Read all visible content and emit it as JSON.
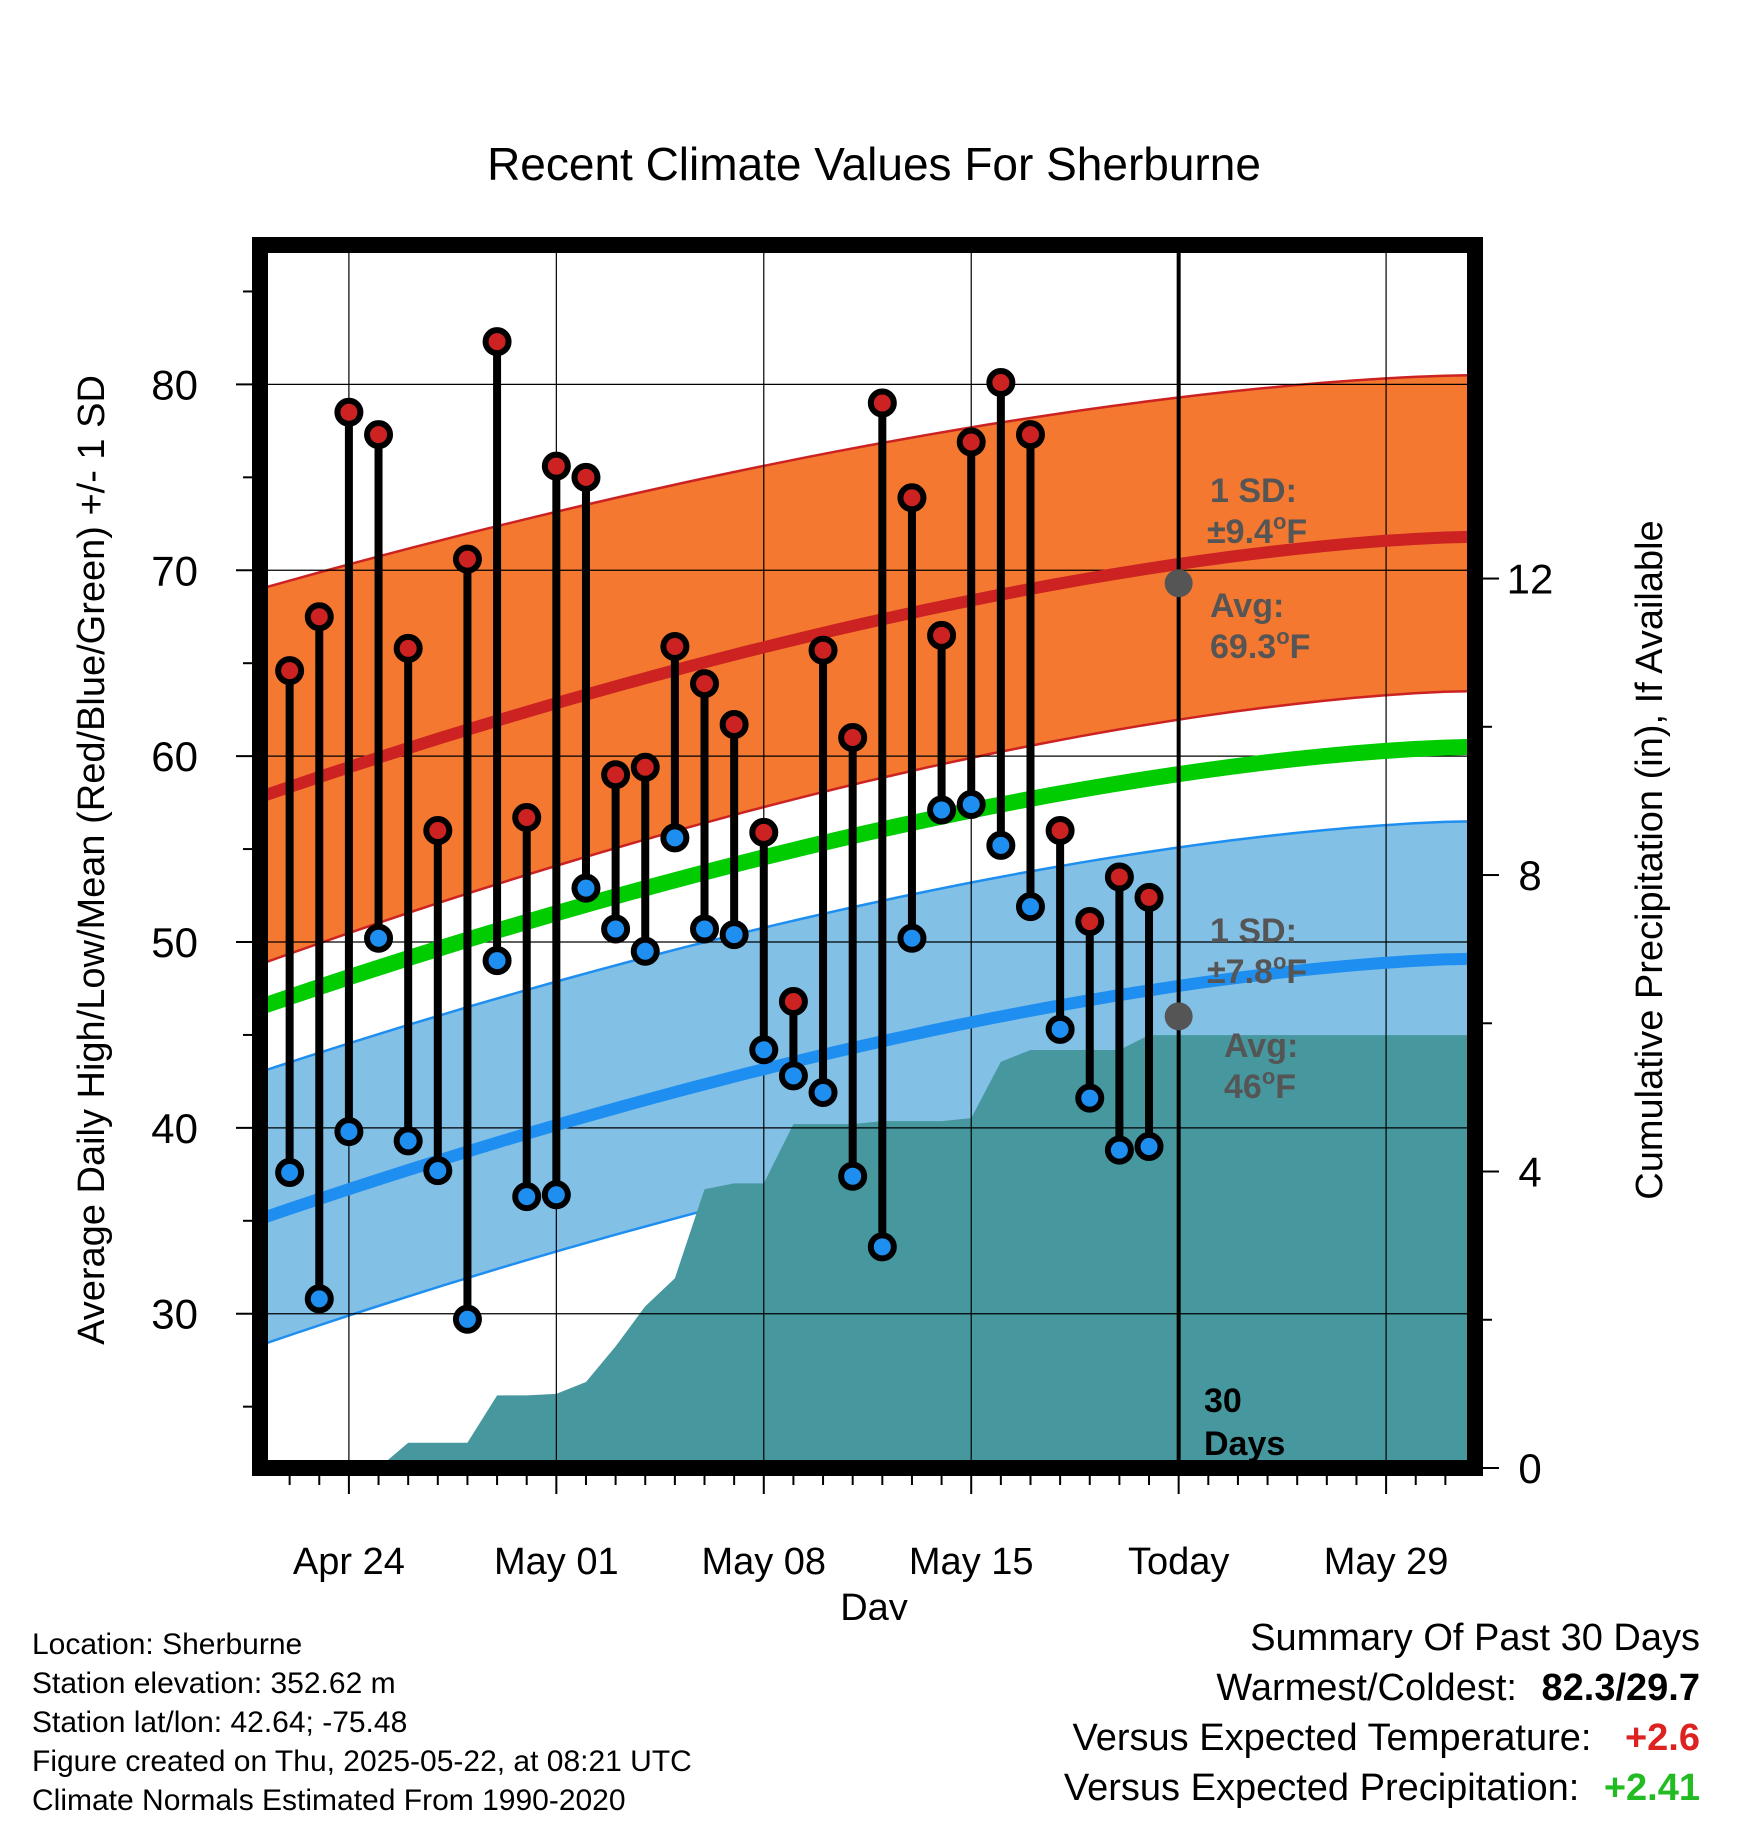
{
  "chart_data": {
    "type": "line",
    "title": "Recent Climate Values For Sherburne",
    "xlabel": "Day",
    "ylabel": "Average Daily High/Low/Mean (Red/Blue/Green) +/- 1 SD",
    "y2label": "Cumulative Precipitation (in), If Available",
    "xlim": [
      "2025-04-21",
      "2025-06-01"
    ],
    "ylim": [
      21.7,
      87.5
    ],
    "y2lim": [
      0,
      16.5
    ],
    "yticks": [
      30,
      40,
      50,
      60,
      70,
      80
    ],
    "y2ticks": [
      0,
      4,
      8,
      12
    ],
    "grid": true,
    "x_tick_labels": [
      {
        "date": "2025-04-24",
        "label": "Apr 24"
      },
      {
        "date": "2025-05-01",
        "label": "May 01"
      },
      {
        "date": "2025-05-08",
        "label": "May 08"
      },
      {
        "date": "2025-05-15",
        "label": "May 15"
      },
      {
        "date": "2025-05-22",
        "label": "Today"
      },
      {
        "date": "2025-05-29",
        "label": "May 29"
      }
    ],
    "today": "2025-05-22",
    "today_label": [
      "30",
      "Days"
    ],
    "normals": {
      "start": "2025-04-21",
      "end": "2025-06-01",
      "high_mean": [
        57.8,
        71.8
      ],
      "high_band": [
        [
          48.8,
          69.0
        ],
        [
          63.5,
          80.5
        ]
      ],
      "low_mean": [
        35.1,
        49.1
      ],
      "low_band": [
        [
          28.3,
          43.0
        ],
        [
          42.3,
          56.5
        ]
      ],
      "mean": [
        46.5,
        60.5
      ],
      "colors": {
        "high_band": "#f4782f",
        "high_line": "#cc2222",
        "low_band": "#82c0e6",
        "low_line": "#1e8ff0",
        "mean_line": "#00cc00",
        "precip": "#47979f"
      }
    },
    "annotations": {
      "high": {
        "sd": "±9.4°F",
        "avg": "69.3°F",
        "avg_value": 69.3
      },
      "low": {
        "sd": "±7.8°F",
        "avg": "46°F",
        "avg_value": 46.0
      },
      "sd_label": "1 SD:",
      "avg_label": "Avg:"
    },
    "daily": {
      "dates": [
        "2025-04-22",
        "2025-04-23",
        "2025-04-24",
        "2025-04-25",
        "2025-04-26",
        "2025-04-27",
        "2025-04-28",
        "2025-04-29",
        "2025-04-30",
        "2025-05-01",
        "2025-05-02",
        "2025-05-03",
        "2025-05-04",
        "2025-05-05",
        "2025-05-06",
        "2025-05-07",
        "2025-05-08",
        "2025-05-09",
        "2025-05-10",
        "2025-05-11",
        "2025-05-12",
        "2025-05-13",
        "2025-05-14",
        "2025-05-15",
        "2025-05-16",
        "2025-05-17",
        "2025-05-18",
        "2025-05-19",
        "2025-05-20",
        "2025-05-21"
      ],
      "high": [
        64.6,
        67.5,
        78.5,
        77.3,
        65.8,
        56.0,
        70.6,
        82.3,
        56.7,
        75.6,
        75.0,
        59.0,
        59.4,
        65.9,
        63.9,
        61.7,
        55.9,
        46.8,
        65.7,
        61.0,
        79.0,
        73.9,
        66.5,
        76.9,
        80.1,
        77.3,
        56.0,
        51.1,
        53.5,
        52.4
      ],
      "low": [
        37.6,
        30.8,
        39.8,
        50.2,
        39.3,
        37.7,
        29.7,
        49.0,
        36.3,
        36.4,
        52.9,
        50.7,
        49.5,
        55.6,
        50.7,
        50.4,
        44.2,
        42.8,
        41.9,
        37.4,
        33.6,
        50.2,
        57.1,
        57.4,
        55.2,
        51.9,
        45.3,
        41.6,
        38.8,
        39.0
      ]
    },
    "precip": {
      "dates": [
        "2025-04-21",
        "2025-04-24",
        "2025-04-25",
        "2025-04-26",
        "2025-04-27",
        "2025-04-28",
        "2025-04-29",
        "2025-04-30",
        "2025-05-01",
        "2025-05-02",
        "2025-05-03",
        "2025-05-04",
        "2025-05-05",
        "2025-05-06",
        "2025-05-07",
        "2025-05-08",
        "2025-05-09",
        "2025-05-10",
        "2025-05-11",
        "2025-05-12",
        "2025-05-13",
        "2025-05-14",
        "2025-05-15",
        "2025-05-16",
        "2025-05-17",
        "2025-05-18",
        "2025-05-19",
        "2025-05-20",
        "2025-05-21",
        "2025-06-01"
      ],
      "values": [
        0,
        0,
        0,
        0.34,
        0.34,
        0.34,
        0.98,
        0.98,
        1.0,
        1.16,
        1.64,
        2.18,
        2.56,
        3.76,
        3.84,
        3.84,
        4.64,
        4.64,
        4.64,
        4.68,
        4.68,
        4.68,
        4.72,
        5.48,
        5.64,
        5.64,
        5.64,
        5.64,
        5.84,
        5.84
      ]
    }
  },
  "info": {
    "location": "Location: Sherburne",
    "elevation": "Station elevation: 352.62 m",
    "latlon": "Station lat/lon: 42.64; -75.48",
    "created": "Figure created on Thu, 2025-05-22, at 08:21 UTC",
    "normals_period": "Climate Normals Estimated From 1990-2020"
  },
  "summary": {
    "heading": "Summary Of Past 30 Days",
    "warm_cold_label": "Warmest/Coldest:",
    "warm_cold_value": "82.3/29.7",
    "temp_label": "Versus Expected Temperature:",
    "temp_value": "+2.6",
    "temp_color": "#dd2222",
    "precip_label": "Versus Expected Precipitation:",
    "precip_value": "+2.41",
    "precip_color": "#22bb22"
  }
}
